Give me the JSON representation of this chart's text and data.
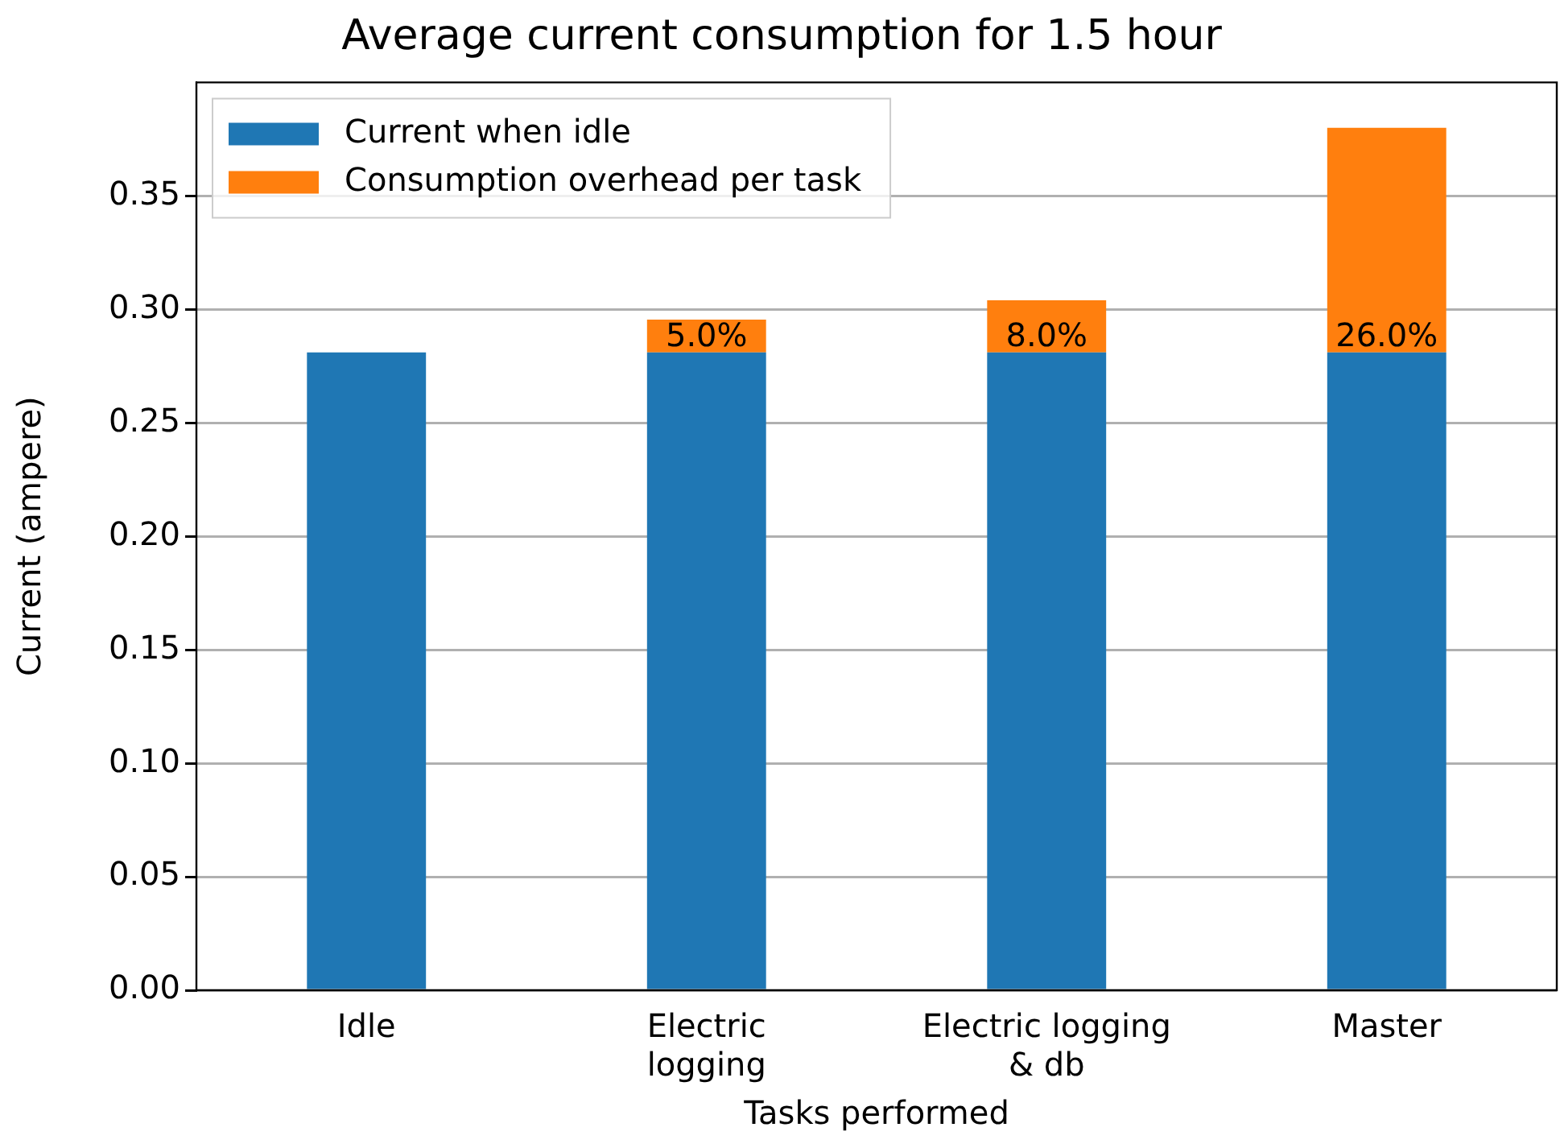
{
  "chart_data": {
    "type": "bar",
    "title": "Average current consumption for 1.5 hour",
    "xlabel": "Tasks performed",
    "ylabel": "Current (ampere)",
    "categories": [
      "Idle",
      "Electric\nlogging",
      "Electric logging\n& db",
      "Master"
    ],
    "stacked": true,
    "series": [
      {
        "name": "Current when idle",
        "color": "#1f77b4",
        "values": [
          0.281,
          0.281,
          0.281,
          0.281
        ]
      },
      {
        "name": "Consumption overhead per task",
        "color": "#ff7f0e",
        "values": [
          0,
          0.0145,
          0.023,
          0.099
        ]
      }
    ],
    "annotations": [
      {
        "text": "5.0%",
        "x": "Electric\nlogging",
        "y": 0.281
      },
      {
        "text": "8.0%",
        "x": "Electric logging\n& db",
        "y": 0.281
      },
      {
        "text": "26.0%",
        "x": "Master",
        "y": 0.281
      }
    ],
    "ylim": [
      0,
      0.4
    ],
    "yticks": [
      {
        "value": 0,
        "label": "0.00"
      },
      {
        "value": 0.05,
        "label": "0.05"
      },
      {
        "value": 0.1,
        "label": "0.10"
      },
      {
        "value": 0.15,
        "label": "0.15"
      },
      {
        "value": 0.2,
        "label": "0.20"
      },
      {
        "value": 0.25,
        "label": "0.25"
      },
      {
        "value": 0.3,
        "label": "0.30"
      },
      {
        "value": 0.35,
        "label": "0.35"
      }
    ],
    "grid": "y",
    "legend": "top left"
  }
}
